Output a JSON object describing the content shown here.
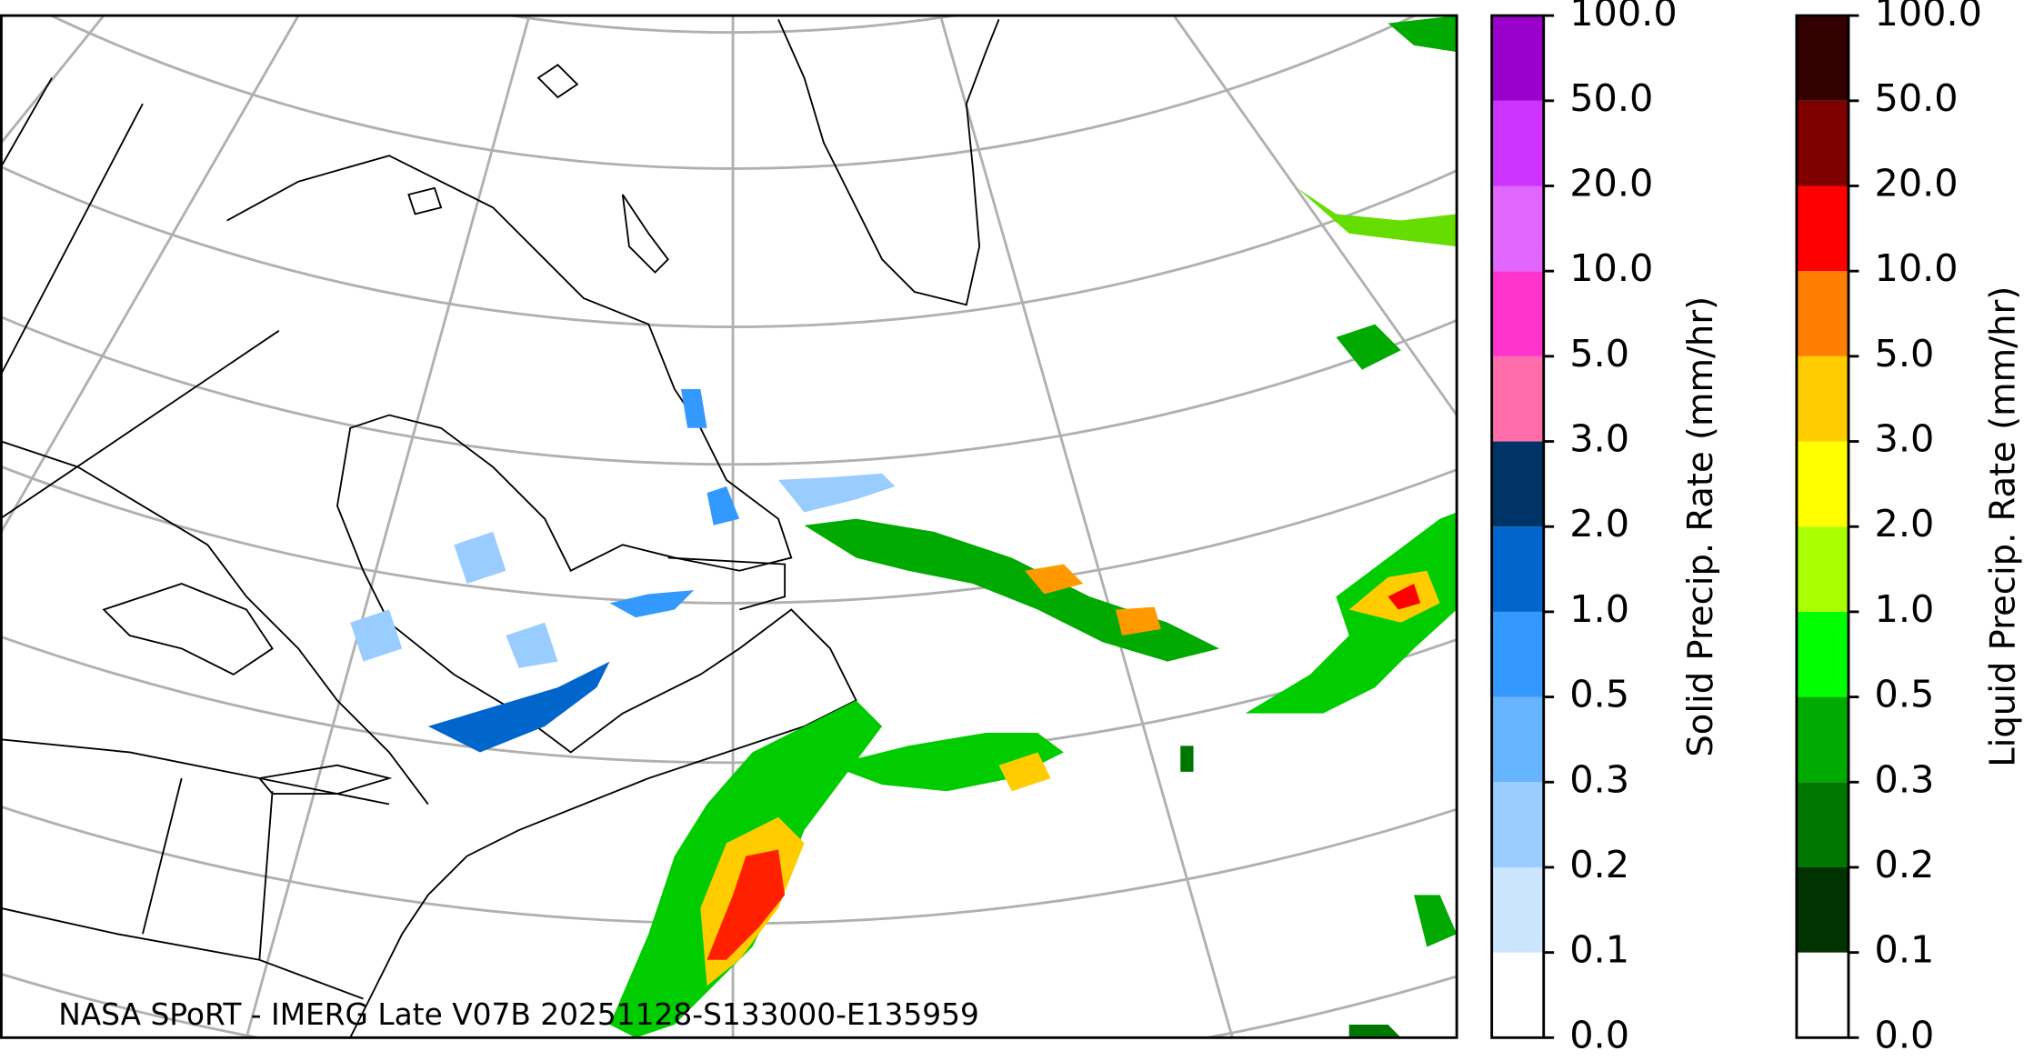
{
  "map": {
    "credit": "NASA SPoRT - IMERG Late V07B 20251128-S133000-E135959"
  },
  "colorbars": [
    {
      "label": "Solid Precip. Rate (mm/hr)",
      "ticks": [
        {
          "value": 0,
          "label": "0.0"
        },
        {
          "value": 0.1,
          "label": "0.1"
        },
        {
          "value": 0.2,
          "label": "0.2"
        },
        {
          "value": 0.3,
          "label": "0.3"
        },
        {
          "value": 0.5,
          "label": "0.5"
        },
        {
          "value": 1,
          "label": "1.0"
        },
        {
          "value": 2,
          "label": "2.0"
        },
        {
          "value": 3,
          "label": "3.0"
        },
        {
          "value": 5,
          "label": "5.0"
        },
        {
          "value": 10,
          "label": "10.0"
        },
        {
          "value": 20,
          "label": "20.0"
        },
        {
          "value": 50,
          "label": "50.0"
        },
        {
          "value": 100,
          "label": "100.0"
        }
      ],
      "colors": [
        "#ffffff",
        "#cce5ff",
        "#99ccff",
        "#66b3ff",
        "#3399ff",
        "#0066cc",
        "#003366",
        "#ff6eaa",
        "#ff33cc",
        "#e066ff",
        "#cc33ff",
        "#9900cc"
      ]
    },
    {
      "label": "Liquid Precip. Rate (mm/hr)",
      "ticks": [
        {
          "value": 0,
          "label": "0.0"
        },
        {
          "value": 0.1,
          "label": "0.1"
        },
        {
          "value": 0.2,
          "label": "0.2"
        },
        {
          "value": 0.3,
          "label": "0.3"
        },
        {
          "value": 0.5,
          "label": "0.5"
        },
        {
          "value": 1,
          "label": "1.0"
        },
        {
          "value": 2,
          "label": "2.0"
        },
        {
          "value": 3,
          "label": "3.0"
        },
        {
          "value": 5,
          "label": "5.0"
        },
        {
          "value": 10,
          "label": "10.0"
        },
        {
          "value": 20,
          "label": "20.0"
        },
        {
          "value": 50,
          "label": "50.0"
        },
        {
          "value": 100,
          "label": "100.0"
        }
      ],
      "colors": [
        "#ffffff",
        "#003300",
        "#007700",
        "#00aa00",
        "#00ff00",
        "#aaff00",
        "#ffff00",
        "#ffcc00",
        "#ff8000",
        "#ff0000",
        "#800000",
        "#330000"
      ]
    }
  ]
}
